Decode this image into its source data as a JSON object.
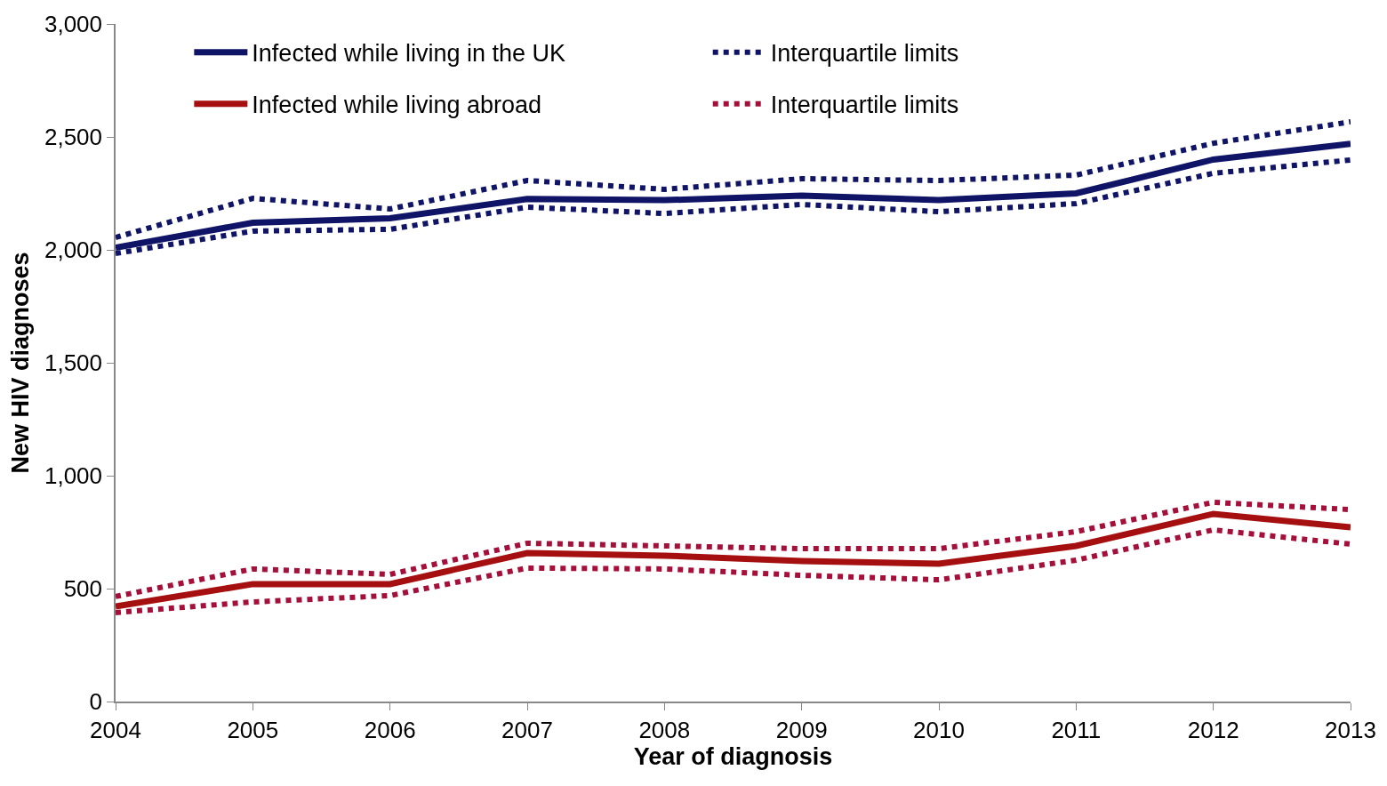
{
  "chart_data": {
    "type": "line",
    "xlabel": "Year of diagnosis",
    "ylabel": "New HIV diagnoses",
    "x": [
      2004,
      2005,
      2006,
      2007,
      2008,
      2009,
      2010,
      2011,
      2012,
      2013
    ],
    "xlim": [
      2004,
      2013
    ],
    "xticks": [
      2004,
      2005,
      2006,
      2007,
      2008,
      2009,
      2010,
      2011,
      2012,
      2013
    ],
    "ylim": [
      0,
      3000
    ],
    "yticks": [
      {
        "value": 0,
        "label": "0"
      },
      {
        "value": 500,
        "label": "500"
      },
      {
        "value": 1000,
        "label": "1,000"
      },
      {
        "value": 1500,
        "label": "1,500"
      },
      {
        "value": 2000,
        "label": "2,000"
      },
      {
        "value": 2500,
        "label": "2,500"
      },
      {
        "value": 3000,
        "label": "3,000"
      }
    ],
    "legend": "top left",
    "marker": "none",
    "series": [
      {
        "name": "Infected while living in the UK",
        "color": "#0f1466",
        "line_style": "solid",
        "values": [
          2010,
          2120,
          2140,
          2225,
          2220,
          2240,
          2220,
          2250,
          2400,
          2470
        ]
      },
      {
        "name": "Interquartile limits",
        "color": "#0f1466",
        "line_style": "dotted",
        "values": [
          2055,
          2228,
          2181,
          2307,
          2268,
          2315,
          2307,
          2331,
          2472,
          2567
        ]
      },
      {
        "color": "#0f1466",
        "line_style": "dotted",
        "values": [
          1984,
          2083,
          2091,
          2189,
          2161,
          2201,
          2169,
          2205,
          2339,
          2398
        ]
      },
      {
        "name": "Infected while living abroad",
        "color": "#a50f0f",
        "line_style": "solid",
        "values": [
          421,
          520,
          520,
          657,
          646,
          622,
          610,
          689,
          831,
          772
        ]
      },
      {
        "name": "Interquartile limits",
        "color": "#a5103a",
        "line_style": "dotted",
        "values": [
          465,
          587,
          563,
          701,
          689,
          677,
          677,
          752,
          882,
          850
        ]
      },
      {
        "color": "#a5103a",
        "line_style": "dotted",
        "values": [
          394,
          441,
          469,
          591,
          587,
          559,
          539,
          626,
          760,
          697
        ]
      }
    ]
  }
}
